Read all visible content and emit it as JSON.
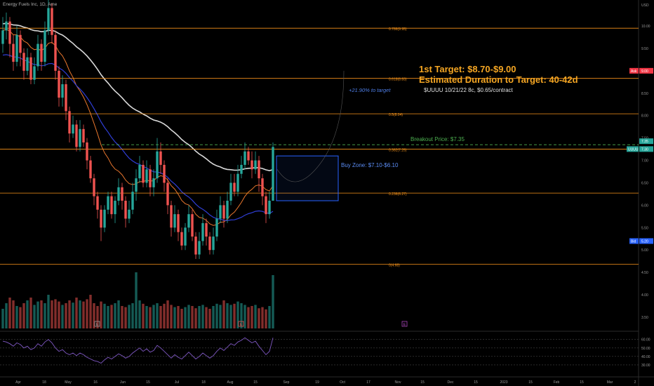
{
  "header": {
    "symbol_title": "Energy Fuels Inc, 1D, Ame"
  },
  "price_axis": {
    "currency": "USD",
    "ticks": [
      "10.00",
      "9.50",
      "9.00",
      "8.50",
      "8.00",
      "7.50",
      "7.00",
      "6.50",
      "6.00",
      "5.50",
      "5.00",
      "4.50",
      "4.00",
      "3.50"
    ],
    "ask_label": "Ask",
    "ask_value": "9.00",
    "last_value": "7.35",
    "last_value_2": "7.30",
    "symbol_tag": "UUUU",
    "bid_label": "Bid",
    "bid_value": "5.20"
  },
  "rsi_axis": {
    "ticks": [
      "60.00",
      "50.00",
      "40.00",
      "30.00"
    ]
  },
  "time_axis": {
    "ticks": [
      "Apr",
      "18",
      "May",
      "16",
      "Jun",
      "15",
      "Jul",
      "18",
      "Aug",
      "15",
      "Sep",
      "19",
      "Oct",
      "17",
      "Nov",
      "15",
      "Dec",
      "15",
      "2023",
      "15",
      "Feb",
      "15",
      "Mar",
      "2"
    ]
  },
  "fib_levels": [
    {
      "label": "0.786(9.95)",
      "price": 9.95
    },
    {
      "label": "0.618(8.83)",
      "price": 8.83
    },
    {
      "label": "0.5(8.04)",
      "price": 8.04
    },
    {
      "label": "0.382(7.25)",
      "price": 7.25
    },
    {
      "label": "0.236(6.27)",
      "price": 6.27
    },
    {
      "label": "0(4.68)",
      "price": 4.68
    }
  ],
  "annotations": {
    "target_title": "1st Target: $8.70-$9.00",
    "duration": "Estimated Duration to Target: 40-42d",
    "options": "$UUUU 10/21/22 8c, $0.65/contract",
    "pct_to_target": "+21.90% to target",
    "breakout": "Breakout Price: $7.35",
    "buy_zone": "Buy Zone: $7.10-$6.10",
    "earnings_markers": [
      "E",
      "E",
      "E"
    ]
  },
  "colors": {
    "bull": "#26a69a",
    "bear": "#ef5350",
    "fib": "#f7931a",
    "ma_orange": "#e8762d",
    "ma_white": "#d9d9d9",
    "ma_blue": "#2f3ed6",
    "breakout": "#4caf50",
    "buy_zone": "#2962ff",
    "target_text": "#f5a623",
    "rsi": "#7e57c2"
  },
  "chart_data": {
    "type": "candlestick",
    "symbol": "Energy Fuels Inc",
    "timeframe": "1D",
    "ylim": [
      3.3,
      10.6
    ],
    "x_first_date": "Apr 4",
    "candles": [
      [
        9.6,
        9.9,
        10.2,
        9.4
      ],
      [
        9.9,
        10.1,
        10.3,
        9.7
      ],
      [
        10.1,
        9.6,
        10.2,
        9.3
      ],
      [
        9.6,
        9.2,
        9.8,
        9.0
      ],
      [
        9.2,
        9.8,
        10.0,
        9.1
      ],
      [
        9.8,
        9.4,
        9.9,
        9.1
      ],
      [
        9.4,
        9.0,
        9.5,
        8.8
      ],
      [
        9.0,
        9.3,
        9.5,
        8.9
      ],
      [
        9.3,
        8.8,
        9.4,
        8.7
      ],
      [
        8.8,
        9.1,
        9.3,
        8.7
      ],
      [
        9.1,
        9.6,
        9.8,
        9.0
      ],
      [
        9.6,
        9.2,
        9.7,
        9.0
      ],
      [
        9.2,
        9.9,
        10.1,
        9.1
      ],
      [
        9.9,
        10.4,
        10.6,
        9.8
      ],
      [
        10.4,
        9.8,
        10.5,
        9.6
      ],
      [
        9.8,
        9.0,
        9.9,
        8.8
      ],
      [
        9.0,
        8.4,
        9.1,
        8.2
      ],
      [
        8.4,
        8.7,
        8.9,
        8.2
      ],
      [
        8.7,
        8.1,
        8.8,
        7.9
      ],
      [
        8.1,
        7.6,
        8.2,
        7.4
      ],
      [
        7.6,
        7.8,
        8.0,
        7.5
      ],
      [
        7.8,
        7.3,
        7.9,
        7.2
      ],
      [
        7.3,
        7.7,
        7.9,
        7.2
      ],
      [
        7.7,
        7.4,
        7.8,
        7.3
      ],
      [
        7.4,
        7.0,
        7.5,
        6.8
      ],
      [
        7.0,
        6.6,
        7.1,
        6.5
      ],
      [
        6.6,
        6.2,
        6.7,
        6.0
      ],
      [
        6.2,
        5.9,
        6.3,
        5.7
      ],
      [
        5.9,
        5.5,
        6.0,
        5.2
      ],
      [
        5.5,
        5.9,
        6.0,
        5.4
      ],
      [
        5.9,
        6.2,
        6.3,
        5.8
      ],
      [
        6.2,
        5.8,
        6.3,
        5.7
      ],
      [
        5.8,
        6.1,
        6.2,
        5.6
      ],
      [
        6.1,
        6.4,
        6.6,
        6.0
      ],
      [
        6.4,
        6.1,
        6.5,
        5.9
      ],
      [
        6.1,
        5.7,
        6.2,
        5.5
      ],
      [
        5.7,
        5.9,
        6.1,
        5.6
      ],
      [
        5.9,
        6.3,
        6.5,
        5.8
      ],
      [
        6.3,
        6.6,
        6.8,
        6.1
      ],
      [
        6.6,
        6.9,
        7.1,
        6.5
      ],
      [
        6.9,
        6.5,
        7.0,
        6.4
      ],
      [
        6.5,
        6.8,
        7.0,
        6.4
      ],
      [
        6.8,
        6.4,
        6.9,
        6.2
      ],
      [
        6.4,
        6.6,
        6.8,
        6.2
      ],
      [
        6.6,
        7.2,
        7.5,
        6.5
      ],
      [
        7.2,
        6.9,
        7.4,
        6.7
      ],
      [
        6.9,
        6.5,
        7.0,
        6.3
      ],
      [
        6.5,
        6.0,
        6.6,
        5.8
      ],
      [
        6.0,
        5.5,
        6.1,
        5.3
      ],
      [
        5.5,
        5.8,
        6.0,
        5.4
      ],
      [
        5.8,
        5.4,
        5.9,
        5.2
      ],
      [
        5.4,
        5.1,
        5.5,
        5.0
      ],
      [
        5.1,
        5.5,
        5.6,
        5.0
      ],
      [
        5.5,
        5.8,
        6.0,
        5.4
      ],
      [
        5.8,
        5.3,
        5.9,
        5.2
      ],
      [
        5.3,
        4.9,
        5.4,
        4.8
      ],
      [
        4.9,
        5.2,
        5.4,
        4.8
      ],
      [
        5.2,
        5.6,
        5.8,
        5.1
      ],
      [
        5.6,
        5.3,
        5.7,
        5.1
      ],
      [
        5.3,
        5.0,
        5.4,
        4.9
      ],
      [
        5.0,
        5.3,
        5.5,
        4.9
      ],
      [
        5.3,
        5.7,
        5.9,
        5.2
      ],
      [
        5.7,
        6.0,
        6.2,
        5.6
      ],
      [
        6.0,
        5.7,
        6.1,
        5.5
      ],
      [
        5.7,
        6.1,
        6.3,
        5.6
      ],
      [
        6.1,
        6.5,
        6.7,
        6.0
      ],
      [
        6.5,
        6.3,
        6.7,
        6.2
      ],
      [
        6.3,
        6.7,
        6.9,
        6.2
      ],
      [
        6.7,
        6.9,
        7.1,
        6.6
      ],
      [
        6.9,
        7.2,
        7.4,
        6.8
      ],
      [
        7.2,
        7.0,
        7.3,
        6.9
      ],
      [
        7.0,
        6.8,
        7.2,
        6.6
      ],
      [
        6.8,
        7.0,
        7.2,
        6.7
      ],
      [
        7.0,
        6.6,
        7.1,
        6.3
      ],
      [
        6.6,
        6.2,
        6.7,
        6.0
      ],
      [
        6.2,
        5.8,
        6.3,
        5.6
      ],
      [
        5.8,
        6.1,
        6.3,
        5.7
      ],
      [
        6.1,
        7.3,
        7.4,
        6.1
      ]
    ],
    "volume_relative": [
      0.35,
      0.45,
      0.55,
      0.5,
      0.4,
      0.38,
      0.45,
      0.5,
      0.55,
      0.42,
      0.48,
      0.5,
      0.45,
      0.6,
      0.5,
      0.52,
      0.48,
      0.42,
      0.45,
      0.5,
      0.46,
      0.55,
      0.5,
      0.48,
      0.52,
      0.6,
      0.45,
      0.4,
      0.48,
      0.44,
      0.4,
      0.42,
      0.45,
      0.5,
      0.4,
      0.38,
      0.42,
      0.45,
      1.0,
      0.5,
      0.44,
      0.4,
      0.38,
      0.42,
      0.45,
      0.4,
      0.44,
      0.5,
      0.42,
      0.38,
      0.4,
      0.35,
      0.38,
      0.42,
      0.4,
      0.36,
      0.4,
      0.42,
      0.38,
      0.35,
      0.4,
      0.44,
      0.42,
      0.5,
      0.45,
      0.42,
      0.44,
      0.48,
      0.45,
      0.42,
      0.38,
      0.4,
      0.42,
      0.36,
      0.38,
      0.34,
      0.4,
      0.95
    ],
    "rsi_ylim": [
      25,
      68
    ],
    "rsi_values": [
      58,
      57,
      55,
      52,
      56,
      54,
      50,
      52,
      48,
      50,
      55,
      52,
      57,
      60,
      56,
      50,
      46,
      48,
      44,
      42,
      44,
      41,
      44,
      42,
      39,
      37,
      35,
      34,
      32,
      36,
      39,
      37,
      40,
      43,
      41,
      38,
      40,
      44,
      47,
      50,
      46,
      49,
      45,
      47,
      53,
      50,
      46,
      42,
      38,
      42,
      39,
      37,
      41,
      45,
      41,
      37,
      40,
      44,
      41,
      38,
      41,
      46,
      50,
      47,
      51,
      55,
      53,
      57,
      59,
      62,
      59,
      56,
      58,
      52,
      47,
      42,
      46,
      62
    ]
  }
}
